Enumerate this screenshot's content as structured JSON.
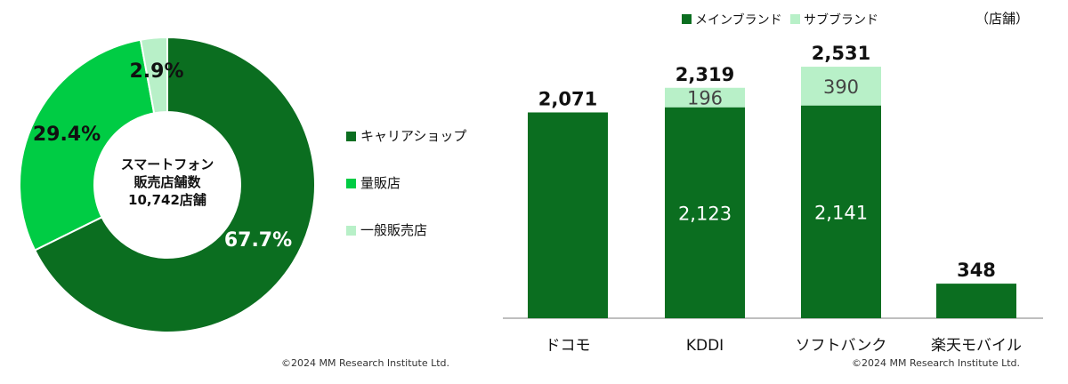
{
  "colors": {
    "dark_green": "#0b6e20",
    "bright_green": "#00cc44",
    "pale_green": "#b8f0c8",
    "axis": "#999999",
    "text": "#111111"
  },
  "chart_data": [
    {
      "type": "pie",
      "variant": "donut",
      "center_label": [
        "スマートフォン",
        "販売店舗数",
        "10,742店舗"
      ],
      "slices": [
        {
          "name": "キャリアショップ",
          "value": 67.7,
          "label": "67.7%",
          "color": "#0b6e20"
        },
        {
          "name": "量販店",
          "value": 29.4,
          "label": "29.4%",
          "color": "#00cc44"
        },
        {
          "name": "一般販売店",
          "value": 2.9,
          "label": "2.9%",
          "color": "#b8f0c8"
        }
      ],
      "legend": [
        "キャリアショップ",
        "量販店",
        "一般販売店"
      ],
      "legend_position": "right",
      "copyright": "©2024  MM Research Institute Ltd."
    },
    {
      "type": "bar",
      "stacked": true,
      "unit_label": "（店舗）",
      "categories": [
        "ドコモ",
        "KDDI",
        "ソフトバンク",
        "楽天モバイル"
      ],
      "series": [
        {
          "name": "メインブランド",
          "color": "#0b6e20",
          "values": [
            2071,
            2123,
            2141,
            348
          ],
          "value_labels": [
            "",
            "2,123",
            "2,141",
            ""
          ]
        },
        {
          "name": "サブブランド",
          "color": "#b8f0c8",
          "values": [
            0,
            196,
            390,
            0
          ],
          "value_labels": [
            "",
            "196",
            "390",
            ""
          ]
        }
      ],
      "totals": [
        "2,071",
        "2,319",
        "2,531",
        "348"
      ],
      "ylim": [
        0,
        2700
      ],
      "grid": false,
      "legend_position": "top",
      "copyright": "©2024  MM Research Institute Ltd."
    }
  ]
}
